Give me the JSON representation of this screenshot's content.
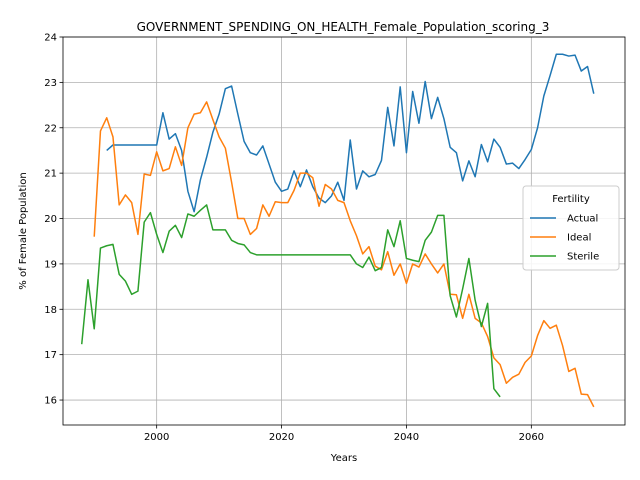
{
  "chart_data": {
    "type": "line",
    "title": "GOVERNMENT_SPENDING_ON_HEALTH_Female_Population_scoring_3",
    "xlabel": "Years",
    "ylabel": "% of Female Population",
    "xlim": [
      1985,
      2075
    ],
    "ylim": [
      15.45,
      24.0
    ],
    "xticks": [
      2000,
      2020,
      2040,
      2060
    ],
    "yticks": [
      16,
      17,
      18,
      19,
      20,
      21,
      22,
      23,
      24
    ],
    "grid": true,
    "legend": {
      "title": "Fertility",
      "position": "center-right"
    },
    "series": [
      {
        "name": "Actual",
        "color": "#1f77b4",
        "x": [
          1992,
          1993,
          1994,
          1995,
          1996,
          1997,
          1998,
          1999,
          2000,
          2001,
          2002,
          2003,
          2004,
          2005,
          2006,
          2007,
          2008,
          2009,
          2010,
          2011,
          2012,
          2013,
          2014,
          2015,
          2016,
          2017,
          2018,
          2019,
          2020,
          2021,
          2022,
          2023,
          2024,
          2025,
          2026,
          2027,
          2028,
          2029,
          2030,
          2031,
          2032,
          2033,
          2034,
          2035,
          2036,
          2037,
          2038,
          2039,
          2040,
          2041,
          2042,
          2043,
          2044,
          2045,
          2046,
          2047,
          2048,
          2049,
          2050,
          2051,
          2052,
          2053,
          2054,
          2055,
          2056,
          2057,
          2058,
          2059,
          2060,
          2061,
          2062,
          2063,
          2064,
          2065,
          2066,
          2067,
          2068,
          2069,
          2070
        ],
        "y": [
          21.5,
          21.62,
          21.62,
          21.62,
          21.62,
          21.62,
          21.62,
          21.62,
          21.62,
          22.33,
          21.75,
          21.87,
          21.5,
          20.6,
          20.15,
          20.85,
          21.35,
          21.9,
          22.3,
          22.86,
          22.92,
          22.3,
          21.7,
          21.45,
          21.4,
          21.6,
          21.2,
          20.8,
          20.6,
          20.65,
          21.05,
          20.7,
          21.07,
          20.7,
          20.45,
          20.35,
          20.5,
          20.8,
          20.4,
          21.73,
          20.65,
          21.05,
          20.92,
          20.97,
          21.28,
          22.45,
          21.6,
          22.9,
          21.45,
          22.8,
          22.1,
          23.02,
          22.2,
          22.67,
          22.2,
          21.57,
          21.45,
          20.83,
          21.27,
          20.92,
          21.63,
          21.25,
          21.75,
          21.57,
          21.2,
          21.22,
          21.1,
          21.3,
          21.52,
          22.0,
          22.7,
          23.15,
          23.62,
          23.62,
          23.58,
          23.6,
          23.25,
          23.35,
          22.75
        ]
      },
      {
        "name": "Ideal",
        "color": "#ff7f0e",
        "x": [
          1990,
          1991,
          1992,
          1993,
          1994,
          1995,
          1996,
          1997,
          1998,
          1999,
          2000,
          2001,
          2002,
          2003,
          2004,
          2005,
          2006,
          2007,
          2008,
          2009,
          2010,
          2011,
          2012,
          2013,
          2014,
          2015,
          2016,
          2017,
          2018,
          2019,
          2020,
          2021,
          2022,
          2023,
          2024,
          2025,
          2026,
          2027,
          2028,
          2029,
          2030,
          2031,
          2032,
          2033,
          2034,
          2035,
          2036,
          2037,
          2038,
          2039,
          2040,
          2041,
          2042,
          2043,
          2044,
          2045,
          2046,
          2047,
          2048,
          2049,
          2050,
          2051,
          2052,
          2053,
          2054,
          2055,
          2056,
          2057,
          2058,
          2059,
          2060,
          2061,
          2062,
          2063,
          2064,
          2065,
          2066,
          2067,
          2068,
          2069,
          2070
        ],
        "y": [
          19.6,
          21.93,
          22.22,
          21.8,
          20.3,
          20.52,
          20.35,
          19.65,
          20.98,
          20.95,
          21.47,
          21.05,
          21.1,
          21.58,
          21.17,
          22.0,
          22.3,
          22.33,
          22.57,
          22.18,
          21.8,
          21.55,
          20.8,
          20.0,
          20.0,
          19.65,
          19.78,
          20.3,
          20.05,
          20.37,
          20.35,
          20.35,
          20.62,
          21.0,
          21.0,
          20.9,
          20.27,
          20.75,
          20.65,
          20.4,
          20.35,
          19.95,
          19.62,
          19.22,
          19.38,
          18.95,
          18.87,
          19.27,
          18.75,
          19.0,
          18.57,
          19.0,
          18.93,
          19.22,
          19.0,
          18.8,
          19.0,
          18.33,
          18.32,
          17.8,
          18.33,
          17.8,
          17.7,
          17.4,
          16.93,
          16.78,
          16.37,
          16.5,
          16.57,
          16.83,
          16.97,
          17.42,
          17.75,
          17.58,
          17.65,
          17.2,
          16.63,
          16.7,
          16.13,
          16.12,
          15.85
        ]
      },
      {
        "name": "Sterile",
        "color": "#2ca02c",
        "x": [
          1988,
          1989,
          1990,
          1991,
          1992,
          1993,
          1994,
          1995,
          1996,
          1997,
          1998,
          1999,
          2000,
          2001,
          2002,
          2003,
          2004,
          2005,
          2006,
          2007,
          2008,
          2009,
          2010,
          2011,
          2012,
          2013,
          2014,
          2015,
          2016,
          2017,
          2018,
          2019,
          2020,
          2021,
          2022,
          2023,
          2024,
          2025,
          2026,
          2027,
          2028,
          2029,
          2030,
          2031,
          2032,
          2033,
          2034,
          2035,
          2036,
          2037,
          2038,
          2039,
          2040,
          2041,
          2042,
          2043,
          2044,
          2045,
          2046,
          2047,
          2048,
          2049,
          2050,
          2051,
          2052,
          2053,
          2054,
          2055
        ],
        "y": [
          17.23,
          18.65,
          17.57,
          19.35,
          19.4,
          19.43,
          18.77,
          18.62,
          18.33,
          18.4,
          19.92,
          20.13,
          19.65,
          19.25,
          19.72,
          19.85,
          19.58,
          20.1,
          20.05,
          20.18,
          20.3,
          19.75,
          19.75,
          19.75,
          19.52,
          19.45,
          19.42,
          19.25,
          19.2,
          19.2,
          19.2,
          19.2,
          19.2,
          19.2,
          19.2,
          19.2,
          19.2,
          19.2,
          19.2,
          19.2,
          19.2,
          19.2,
          19.2,
          19.2,
          19.0,
          18.92,
          19.15,
          18.85,
          18.92,
          19.75,
          19.38,
          19.95,
          19.12,
          19.08,
          19.05,
          19.52,
          19.7,
          20.07,
          20.07,
          18.3,
          17.83,
          18.45,
          19.12,
          18.2,
          17.62,
          18.13,
          16.25,
          16.07
        ]
      }
    ]
  }
}
